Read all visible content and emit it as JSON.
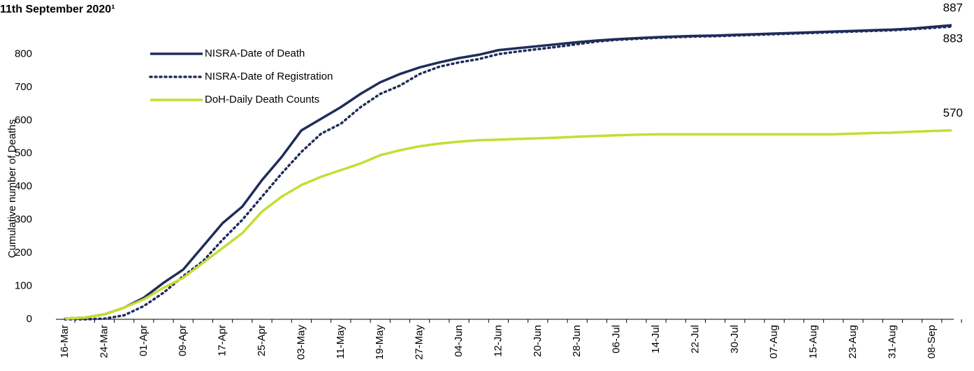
{
  "chart_data": {
    "type": "line",
    "title": "11th September 2020¹",
    "y_label": "Cumulative number of Deaths",
    "categories": [
      "16-Mar",
      null,
      "24-Mar",
      null,
      "01-Apr",
      null,
      "09-Apr",
      null,
      "17-Apr",
      null,
      "25-Apr",
      null,
      "03-May",
      null,
      "11-May",
      null,
      "19-May",
      null,
      "27-May",
      null,
      "04-Jun",
      null,
      "12-Jun",
      null,
      "20-Jun",
      null,
      "28-Jun",
      null,
      "06-Jul",
      null,
      "14-Jul",
      null,
      "22-Jul",
      null,
      "30-Jul",
      null,
      "07-Aug",
      null,
      "15-Aug",
      null,
      "23-Aug",
      null,
      "31-Aug",
      null,
      "08-Sep",
      null
    ],
    "series": [
      {
        "name": "NISRA-Date of Death",
        "color": "#1f2d5a",
        "dash": "solid",
        "values": [
          2,
          5,
          15,
          35,
          65,
          110,
          150,
          220,
          290,
          340,
          420,
          490,
          570,
          605,
          640,
          680,
          715,
          740,
          760,
          775,
          788,
          798,
          812,
          818,
          824,
          830,
          836,
          841,
          845,
          848,
          851,
          853,
          855,
          856,
          858,
          860,
          862,
          864,
          866,
          868,
          870,
          872,
          874,
          877,
          882,
          887
        ]
      },
      {
        "name": "NISRA-Date of Registration",
        "color": "#1f2d5a",
        "dash": "dotted",
        "values": [
          0,
          0,
          2,
          12,
          40,
          80,
          130,
          175,
          240,
          300,
          370,
          440,
          505,
          560,
          590,
          640,
          680,
          705,
          740,
          762,
          775,
          785,
          800,
          808,
          815,
          822,
          830,
          838,
          843,
          846,
          849,
          851,
          853,
          854,
          856,
          858,
          860,
          862,
          864,
          866,
          868,
          870,
          872,
          875,
          879,
          883
        ]
      },
      {
        "name": "DoH-Daily Death Counts",
        "color": "#c8dc32",
        "dash": "solid",
        "values": [
          2,
          5,
          15,
          35,
          60,
          95,
          125,
          170,
          215,
          260,
          325,
          370,
          405,
          430,
          450,
          470,
          495,
          510,
          522,
          530,
          536,
          540,
          542,
          544,
          546,
          548,
          551,
          553,
          555,
          557,
          558,
          558,
          558,
          558,
          558,
          558,
          558,
          558,
          558,
          558,
          560,
          562,
          563,
          566,
          568,
          570
        ]
      }
    ],
    "ylim": [
      0,
      900
    ],
    "yticks": [
      0,
      100,
      200,
      300,
      400,
      500,
      600,
      700,
      800
    ],
    "grid": false,
    "legend": "upper left"
  }
}
